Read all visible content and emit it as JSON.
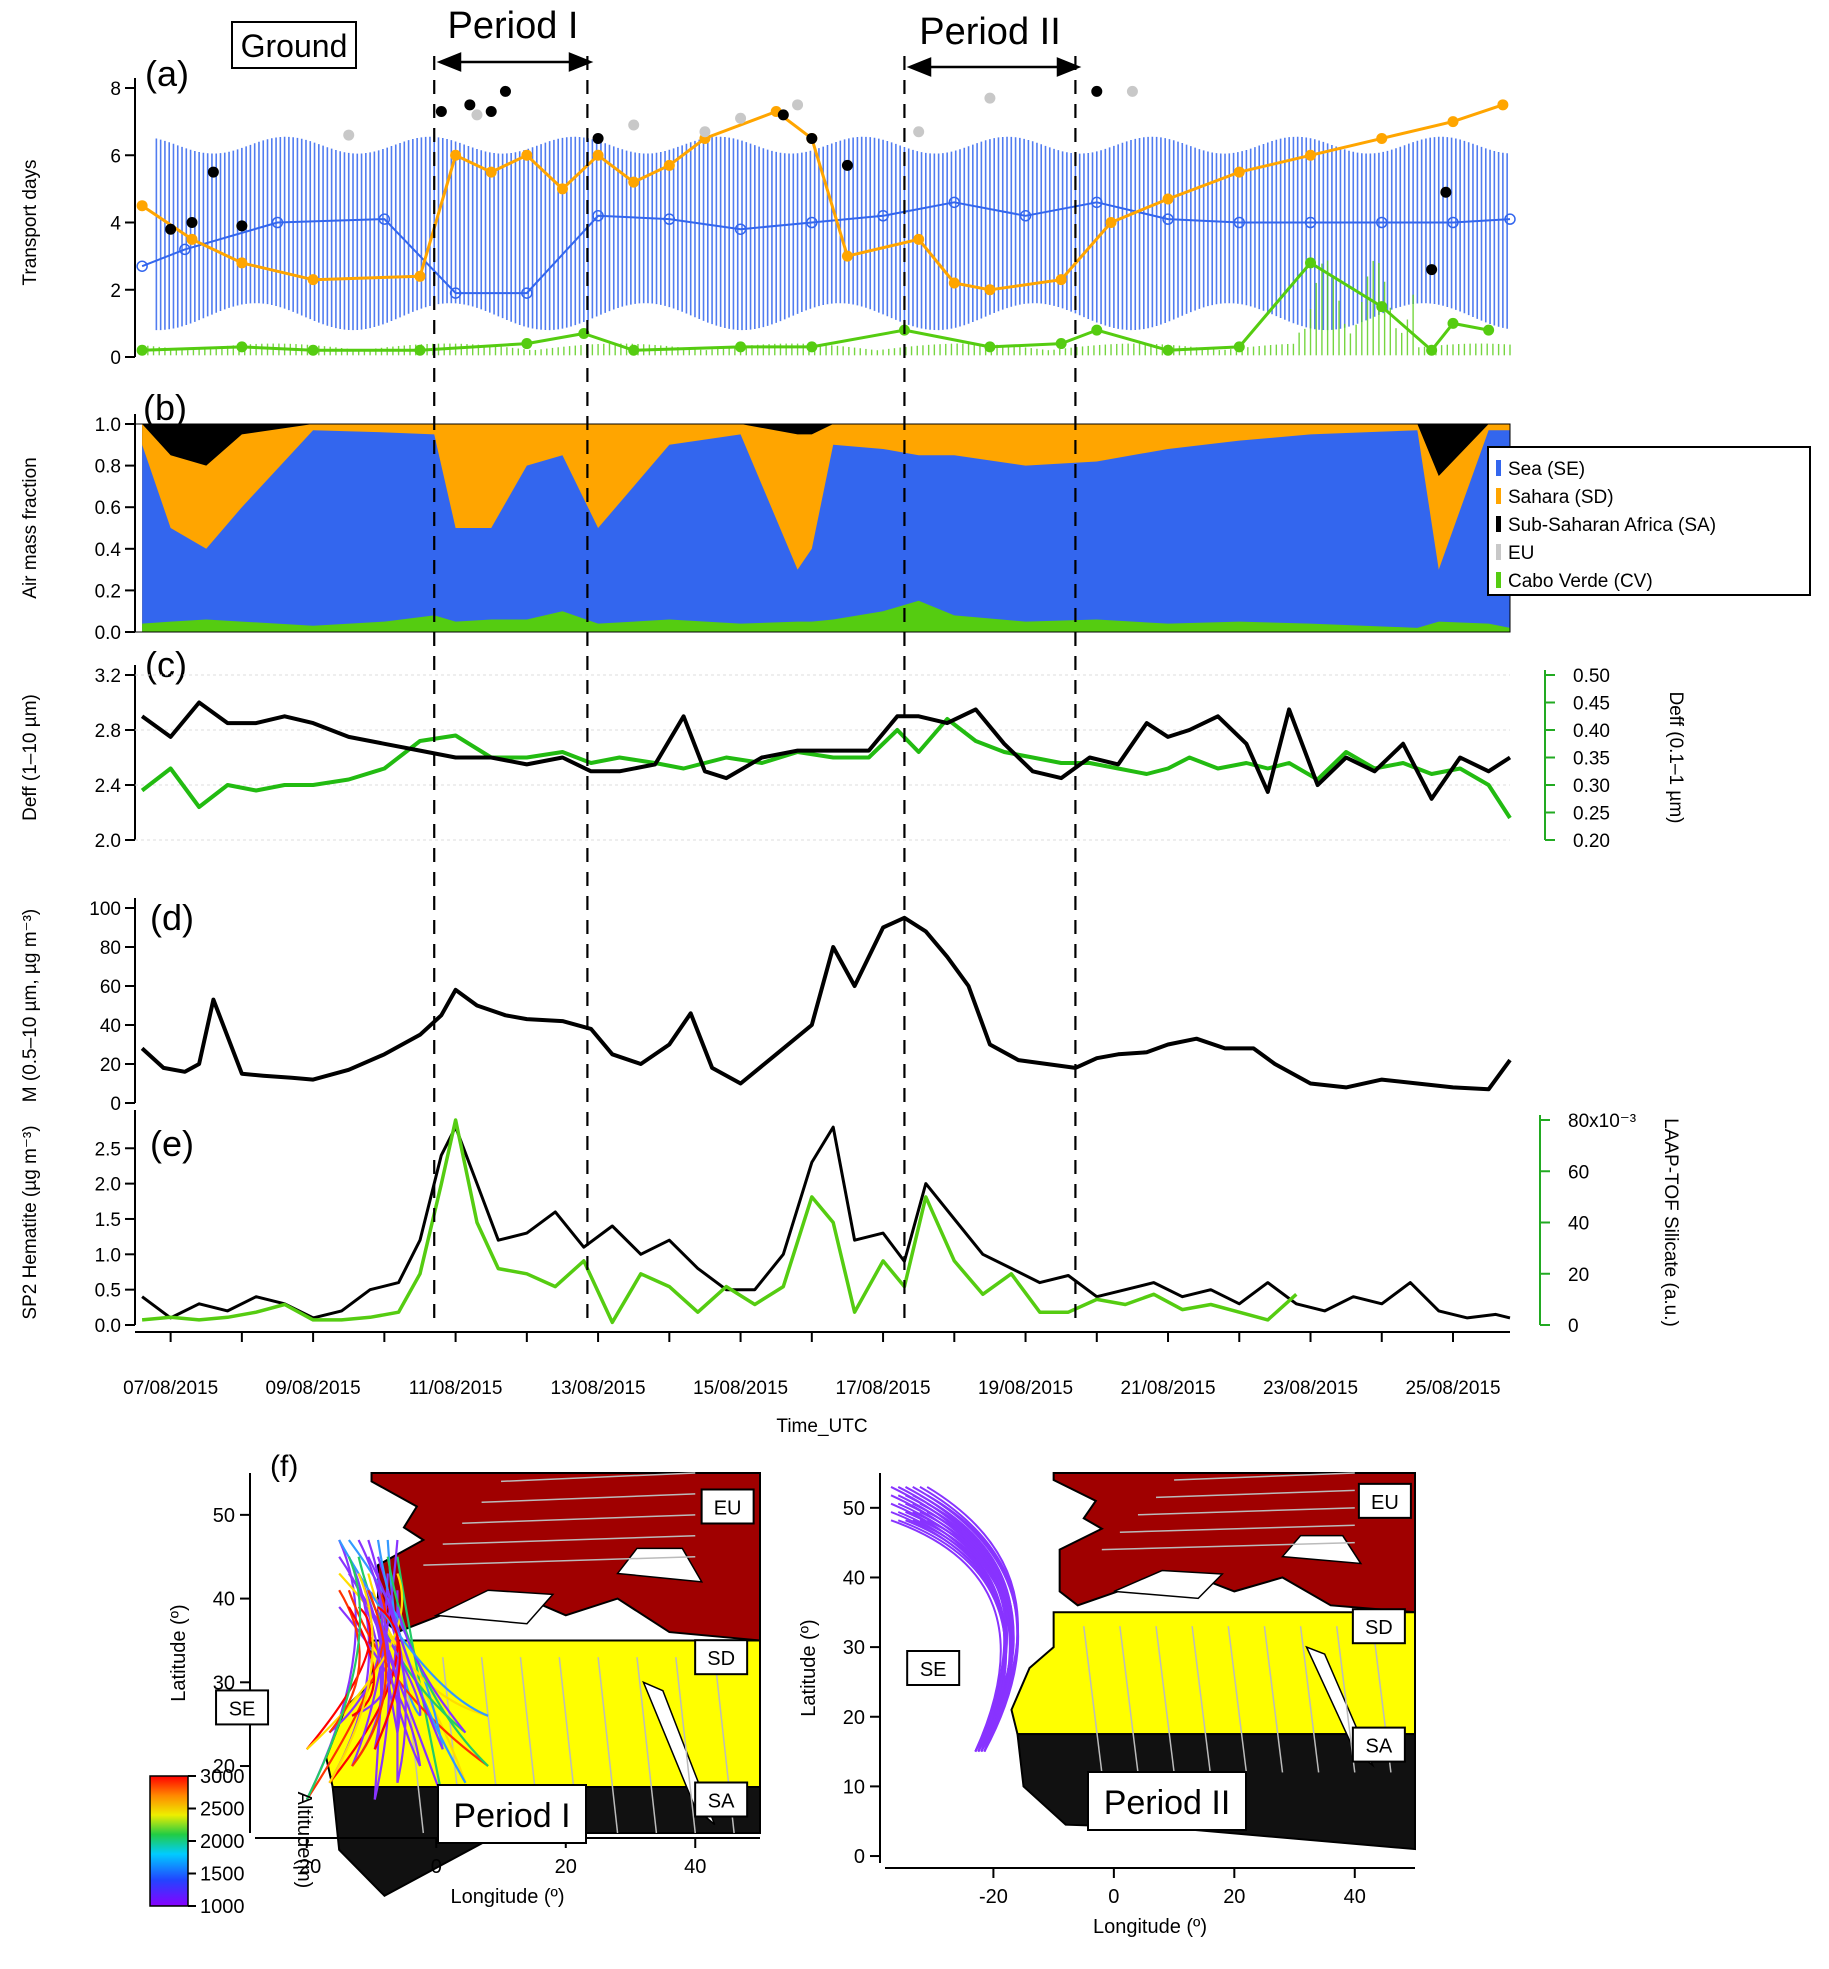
{
  "figure": {
    "period_labels": [
      "Ground",
      "Period I",
      "Period II"
    ],
    "panel_labels": [
      "(a)",
      "(b)",
      "(c)",
      "(d)",
      "(e)",
      "(f)"
    ],
    "time_axis": {
      "label": "Time_UTC",
      "ticks": [
        "07/08/2015",
        "09/08/2015",
        "11/08/2015",
        "13/08/2015",
        "15/08/2015",
        "17/08/2015",
        "19/08/2015",
        "21/08/2015",
        "23/08/2015",
        "25/08/2015"
      ]
    },
    "colors": {
      "sea": "#3366ee",
      "sahara": "#ffa500",
      "subsahara": "#000000",
      "eu": "#c8c8c8",
      "caboverde": "#55cc11",
      "green_axis": "#22aa22"
    }
  },
  "chart_data": [
    {
      "id": "a",
      "type": "scatter",
      "ylabel": "Transport days",
      "ylim": [
        0,
        8
      ],
      "yticks": [
        "0",
        "2",
        "4",
        "6",
        "8"
      ],
      "xlim_days_aug2015": [
        6.5,
        25.8
      ],
      "periods": [
        {
          "name": "Period I",
          "start": 10.7,
          "end": 12.85
        },
        {
          "name": "Period II",
          "start": 17.3,
          "end": 19.7
        }
      ],
      "series": [
        {
          "name": "SE",
          "color": "#3366ee",
          "x": [
            6.6,
            7.2,
            8.5,
            10.0,
            11.0,
            12.0,
            13.0,
            14.0,
            15.0,
            16.0,
            17.0,
            18.0,
            19.0,
            20.0,
            21.0,
            22.0,
            23.0,
            24.0,
            25.0,
            25.8
          ],
          "y": [
            2.7,
            3.2,
            4.0,
            4.1,
            1.9,
            1.9,
            4.2,
            4.1,
            3.8,
            4.0,
            4.2,
            4.6,
            4.2,
            4.6,
            4.1,
            4.0,
            4.0,
            4.0,
            4.0,
            4.1
          ]
        },
        {
          "name": "SD",
          "color": "#ffa500",
          "x": [
            6.6,
            7.3,
            8.0,
            9.0,
            10.5,
            11.0,
            11.5,
            12.0,
            12.5,
            13.0,
            13.5,
            14.0,
            14.5,
            15.5,
            16.0,
            16.5,
            17.5,
            18.0,
            18.5,
            19.5,
            20.2,
            21.0,
            22.0,
            23.0,
            24.0,
            25.0,
            25.7
          ],
          "y": [
            4.5,
            3.5,
            2.8,
            2.3,
            2.4,
            6.0,
            5.5,
            6.0,
            5.0,
            6.0,
            5.2,
            5.7,
            6.5,
            7.3,
            6.5,
            3.0,
            3.5,
            2.2,
            2.0,
            2.3,
            4.0,
            4.7,
            5.5,
            6.0,
            6.5,
            7.0,
            7.5
          ]
        },
        {
          "name": "SA",
          "color": "#000000",
          "x": [
            7.0,
            7.3,
            7.6,
            8.0,
            10.8,
            11.2,
            11.5,
            11.7,
            13.0,
            15.6,
            16.0,
            16.5,
            20.0,
            24.7,
            24.9
          ],
          "y": [
            3.8,
            4.0,
            5.5,
            3.9,
            7.3,
            7.5,
            7.3,
            7.9,
            6.5,
            7.2,
            6.5,
            5.7,
            7.9,
            2.6,
            4.9
          ]
        },
        {
          "name": "EU",
          "color": "#c8c8c8",
          "x": [
            9.5,
            11.3,
            13.5,
            14.5,
            15.0,
            15.8,
            17.5,
            18.5,
            20.5
          ],
          "y": [
            6.6,
            7.2,
            6.9,
            6.7,
            7.1,
            7.5,
            6.7,
            7.7,
            7.9
          ]
        },
        {
          "name": "CV",
          "color": "#55cc11",
          "x": [
            6.6,
            8.0,
            9.0,
            10.5,
            12.0,
            12.8,
            13.5,
            15.0,
            16.0,
            17.3,
            18.5,
            19.5,
            20.0,
            21.0,
            22.0,
            23.0,
            24.0,
            24.7,
            25.0,
            25.5
          ],
          "y": [
            0.2,
            0.3,
            0.2,
            0.2,
            0.4,
            0.7,
            0.2,
            0.3,
            0.3,
            0.8,
            0.3,
            0.4,
            0.8,
            0.2,
            0.3,
            2.8,
            1.5,
            0.2,
            1.0,
            0.8
          ]
        }
      ]
    },
    {
      "id": "b",
      "type": "area",
      "ylabel": "Air mass fraction",
      "ylim": [
        0,
        1
      ],
      "yticks": [
        "0.0",
        "0.2",
        "0.4",
        "0.6",
        "0.8",
        "1.0"
      ],
      "legend_position": "right",
      "series": [
        {
          "name": "Sea (SE)",
          "color": "#3366ee"
        },
        {
          "name": "Sahara (SD)",
          "color": "#ffa500"
        },
        {
          "name": "Sub-Saharan Africa (SA)",
          "color": "#000000"
        },
        {
          "name": "EU",
          "color": "#c8c8c8"
        },
        {
          "name": "Cabo Verde (CV)",
          "color": "#55cc11"
        }
      ],
      "x": [
        6.6,
        7.0,
        7.5,
        8.0,
        9.0,
        10.0,
        10.7,
        11.0,
        11.5,
        12.0,
        12.5,
        13.0,
        14.0,
        15.0,
        15.8,
        16.0,
        16.3,
        17.0,
        17.5,
        18.0,
        19.0,
        20.0,
        21.0,
        22.0,
        23.0,
        24.5,
        24.8,
        25.5,
        25.8
      ],
      "sea_top": [
        0.9,
        0.5,
        0.4,
        0.6,
        0.97,
        0.96,
        0.95,
        0.5,
        0.5,
        0.8,
        0.85,
        0.5,
        0.9,
        0.95,
        0.3,
        0.4,
        0.9,
        0.88,
        0.85,
        0.85,
        0.8,
        0.82,
        0.88,
        0.92,
        0.95,
        0.97,
        0.3,
        0.97,
        0.97
      ],
      "sahara_top": [
        1.0,
        0.85,
        0.8,
        0.95,
        1.0,
        1.0,
        1.0,
        1.0,
        1.0,
        1.0,
        1.0,
        1.0,
        1.0,
        1.0,
        0.95,
        0.95,
        1.0,
        1.0,
        1.0,
        1.0,
        1.0,
        1.0,
        1.0,
        1.0,
        1.0,
        1.0,
        0.75,
        1.0,
        1.0
      ],
      "cv_top": [
        0.04,
        0.05,
        0.06,
        0.05,
        0.03,
        0.05,
        0.08,
        0.05,
        0.06,
        0.06,
        0.1,
        0.04,
        0.06,
        0.04,
        0.05,
        0.05,
        0.06,
        0.1,
        0.15,
        0.08,
        0.05,
        0.06,
        0.04,
        0.05,
        0.04,
        0.02,
        0.05,
        0.04,
        0.02
      ]
    },
    {
      "id": "c",
      "type": "line",
      "ylabel": "Deff (1–10 µm)",
      "ylim": [
        2.0,
        3.2
      ],
      "yticks": [
        "2.0",
        "2.4",
        "2.8",
        "3.2"
      ],
      "ylabel_right": "Deff (0.1–1 µm)",
      "ylim_right": [
        0.2,
        0.5
      ],
      "yticks_right": [
        "0.20",
        "0.25",
        "0.30",
        "0.35",
        "0.40",
        "0.45",
        "0.50"
      ],
      "series": [
        {
          "name": "Deff (1–10 µm)",
          "color": "#000000",
          "axis": "left",
          "x": [
            6.6,
            7.0,
            7.4,
            7.8,
            8.2,
            8.6,
            9.0,
            9.5,
            10.0,
            10.5,
            11.0,
            11.5,
            12.0,
            12.5,
            12.9,
            13.3,
            13.8,
            14.2,
            14.5,
            14.8,
            15.3,
            15.8,
            16.3,
            16.8,
            17.2,
            17.5,
            17.9,
            18.3,
            18.7,
            19.1,
            19.5,
            19.9,
            20.3,
            20.7,
            21.0,
            21.3,
            21.7,
            22.1,
            22.4,
            22.7,
            23.1,
            23.5,
            23.9,
            24.3,
            24.7,
            25.1,
            25.5,
            25.8
          ],
          "y": [
            2.9,
            2.75,
            3.0,
            2.85,
            2.85,
            2.9,
            2.85,
            2.75,
            2.7,
            2.65,
            2.6,
            2.6,
            2.55,
            2.6,
            2.5,
            2.5,
            2.55,
            2.9,
            2.5,
            2.45,
            2.6,
            2.65,
            2.65,
            2.65,
            2.9,
            2.9,
            2.85,
            2.95,
            2.7,
            2.5,
            2.45,
            2.6,
            2.55,
            2.85,
            2.75,
            2.8,
            2.9,
            2.7,
            2.35,
            2.95,
            2.4,
            2.6,
            2.5,
            2.7,
            2.3,
            2.6,
            2.5,
            2.6
          ]
        },
        {
          "name": "Deff (0.1–1 µm)",
          "color": "#22bb11",
          "axis": "right",
          "x": [
            6.6,
            7.0,
            7.4,
            7.8,
            8.2,
            8.6,
            9.0,
            9.5,
            10.0,
            10.5,
            11.0,
            11.5,
            12.0,
            12.5,
            12.9,
            13.3,
            13.8,
            14.2,
            14.5,
            14.8,
            15.3,
            15.8,
            16.3,
            16.8,
            17.2,
            17.5,
            17.9,
            18.3,
            18.7,
            19.1,
            19.5,
            19.9,
            20.3,
            20.7,
            21.0,
            21.3,
            21.7,
            22.1,
            22.4,
            22.7,
            23.1,
            23.5,
            23.9,
            24.3,
            24.7,
            25.1,
            25.5,
            25.8
          ],
          "y": [
            0.29,
            0.33,
            0.26,
            0.3,
            0.29,
            0.3,
            0.3,
            0.31,
            0.33,
            0.38,
            0.39,
            0.35,
            0.35,
            0.36,
            0.34,
            0.35,
            0.34,
            0.33,
            0.34,
            0.35,
            0.34,
            0.36,
            0.35,
            0.35,
            0.4,
            0.36,
            0.42,
            0.38,
            0.36,
            0.35,
            0.34,
            0.34,
            0.33,
            0.32,
            0.33,
            0.35,
            0.33,
            0.34,
            0.33,
            0.34,
            0.31,
            0.36,
            0.33,
            0.34,
            0.32,
            0.33,
            0.3,
            0.24
          ]
        }
      ]
    },
    {
      "id": "d",
      "type": "line",
      "ylabel": "M (0.5–10 µm, µg m⁻³)",
      "ylim": [
        0,
        100
      ],
      "yticks": [
        "0",
        "20",
        "40",
        "60",
        "80",
        "100"
      ],
      "series": [
        {
          "name": "M",
          "color": "#000000",
          "x": [
            6.6,
            6.9,
            7.2,
            7.4,
            7.6,
            8.0,
            8.3,
            8.7,
            9.0,
            9.5,
            10.0,
            10.5,
            10.8,
            11.0,
            11.3,
            11.7,
            12.0,
            12.5,
            12.9,
            13.2,
            13.6,
            14.0,
            14.3,
            14.6,
            15.0,
            15.5,
            16.0,
            16.3,
            16.6,
            17.0,
            17.3,
            17.6,
            17.9,
            18.2,
            18.5,
            18.9,
            19.3,
            19.7,
            20.0,
            20.3,
            20.7,
            21.0,
            21.4,
            21.8,
            22.2,
            22.5,
            23.0,
            23.5,
            24.0,
            24.5,
            25.0,
            25.5,
            25.8
          ],
          "y": [
            28,
            18,
            16,
            20,
            53,
            15,
            14,
            13,
            12,
            17,
            25,
            35,
            45,
            58,
            50,
            45,
            43,
            42,
            38,
            25,
            20,
            30,
            46,
            18,
            10,
            25,
            40,
            80,
            60,
            90,
            95,
            88,
            75,
            60,
            30,
            22,
            20,
            18,
            23,
            25,
            26,
            30,
            33,
            28,
            28,
            20,
            10,
            8,
            12,
            10,
            8,
            7,
            22
          ]
        }
      ]
    },
    {
      "id": "e",
      "type": "line",
      "ylabel": "SP2 Hematite (µg m⁻³)",
      "ylim": [
        0,
        2.9
      ],
      "yticks": [
        "0.0",
        "0.5",
        "1.0",
        "1.5",
        "2.0",
        "2.5"
      ],
      "ylabel_right": "LAAP-TOF Silicate (a.u.)",
      "ylim_right": [
        0,
        80
      ],
      "yticks_right": [
        "0",
        "20",
        "40",
        "60",
        "80x10⁻³"
      ],
      "series": [
        {
          "name": "SP2 Hematite",
          "color": "#000000",
          "axis": "left",
          "x": [
            6.6,
            7.0,
            7.4,
            7.8,
            8.2,
            8.6,
            9.0,
            9.4,
            9.8,
            10.2,
            10.5,
            10.8,
            11.0,
            11.3,
            11.6,
            12.0,
            12.4,
            12.8,
            13.2,
            13.6,
            14.0,
            14.4,
            14.8,
            15.2,
            15.6,
            16.0,
            16.3,
            16.6,
            17.0,
            17.3,
            17.6,
            18.0,
            18.4,
            18.8,
            19.2,
            19.6,
            20.0,
            20.4,
            20.8,
            21.2,
            21.6,
            22.0,
            22.4,
            22.8,
            23.2,
            23.6,
            24.0,
            24.4,
            24.8,
            25.2,
            25.6,
            25.8
          ],
          "y": [
            0.4,
            0.1,
            0.3,
            0.2,
            0.4,
            0.3,
            0.1,
            0.2,
            0.5,
            0.6,
            1.2,
            2.4,
            2.8,
            2.0,
            1.2,
            1.3,
            1.6,
            1.1,
            1.4,
            1.0,
            1.2,
            0.8,
            0.5,
            0.5,
            1.0,
            2.3,
            2.8,
            1.2,
            1.3,
            0.9,
            2.0,
            1.5,
            1.0,
            0.8,
            0.6,
            0.7,
            0.4,
            0.5,
            0.6,
            0.4,
            0.5,
            0.3,
            0.6,
            0.3,
            0.2,
            0.4,
            0.3,
            0.6,
            0.2,
            0.1,
            0.15,
            0.1
          ]
        },
        {
          "name": "LAAP-TOF Silicate",
          "color": "#55cc11",
          "axis": "right",
          "x": [
            6.6,
            7.0,
            7.4,
            7.8,
            8.2,
            8.6,
            9.0,
            9.4,
            9.8,
            10.2,
            10.5,
            10.8,
            11.0,
            11.3,
            11.6,
            12.0,
            12.4,
            12.8,
            13.2,
            13.6,
            14.0,
            14.4,
            14.8,
            15.2,
            15.6,
            16.0,
            16.3,
            16.6,
            17.0,
            17.3,
            17.6,
            18.0,
            18.4,
            18.8,
            19.2,
            19.6,
            20.0,
            20.4,
            20.8,
            21.2,
            21.6,
            22.0,
            22.4,
            22.8
          ],
          "y": [
            2,
            3,
            2,
            3,
            5,
            8,
            2,
            2,
            3,
            5,
            20,
            55,
            80,
            40,
            22,
            20,
            15,
            25,
            1,
            20,
            15,
            5,
            15,
            8,
            15,
            50,
            40,
            5,
            25,
            15,
            50,
            25,
            12,
            20,
            5,
            5,
            10,
            8,
            12,
            6,
            8,
            5,
            2,
            12
          ]
        }
      ]
    },
    {
      "id": "f",
      "type": "map",
      "panels": [
        {
          "name": "Period I",
          "xlabel": "Longitude (º)",
          "ylabel": "Latitude (º)",
          "xticks": [
            "-20",
            "0",
            "20",
            "40"
          ],
          "yticks": [
            "20",
            "30",
            "40",
            "50"
          ],
          "region_labels": [
            "EU",
            "SD",
            "SA",
            "SE"
          ]
        },
        {
          "name": "Period II",
          "xlabel": "Longitude (º)",
          "ylabel": "Latitude (º)",
          "xticks": [
            "-20",
            "0",
            "20",
            "40"
          ],
          "yticks": [
            "0",
            "10",
            "20",
            "30",
            "40",
            "50"
          ],
          "region_labels": [
            "EU",
            "SD",
            "SA",
            "SE"
          ]
        }
      ],
      "colorbar": {
        "label": "Altitude(m)",
        "ticks": [
          "1000",
          "1500",
          "2000",
          "2500",
          "3000"
        ]
      },
      "region_colors": {
        "EU": "#a00000",
        "SD": "#ffff00",
        "SA": "#111111"
      }
    }
  ]
}
